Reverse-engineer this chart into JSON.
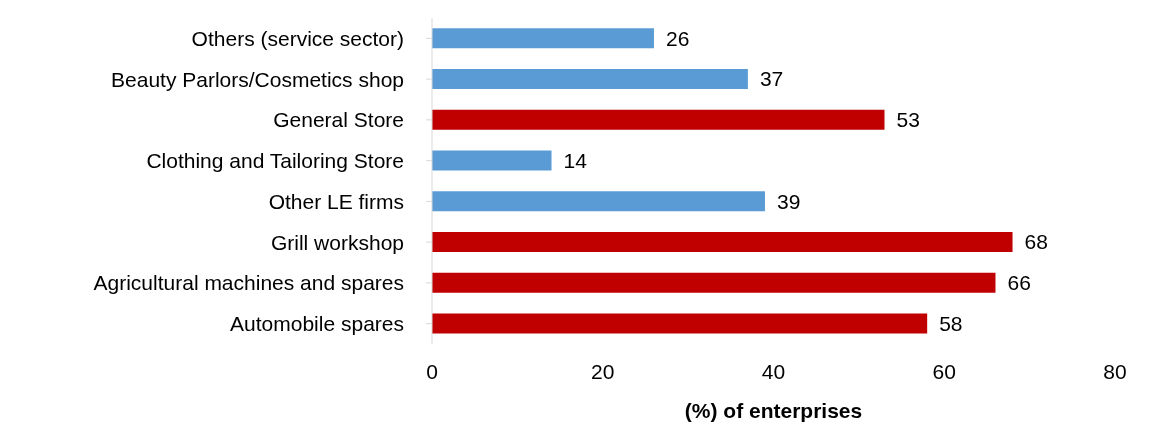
{
  "chart_data": {
    "type": "bar",
    "orientation": "horizontal",
    "xlabel": "(%) of enterprises",
    "categories": [
      "Others (service sector)",
      "Beauty Parlors/Cosmetics shop",
      "General Store",
      "Clothing and Tailoring Store",
      "Other LE firms",
      "Grill workshop",
      "Agricultural machines and spares",
      "Automobile spares"
    ],
    "values": [
      26,
      37,
      53,
      14,
      39,
      68,
      66,
      58
    ],
    "colors": [
      "#5b9bd5",
      "#5b9bd5",
      "#c00000",
      "#5b9bd5",
      "#5b9bd5",
      "#c00000",
      "#c00000",
      "#c00000"
    ],
    "xlim": [
      0,
      80
    ],
    "xticks": [
      0,
      20,
      40,
      60,
      80
    ],
    "grid": false,
    "data_labels": true
  }
}
